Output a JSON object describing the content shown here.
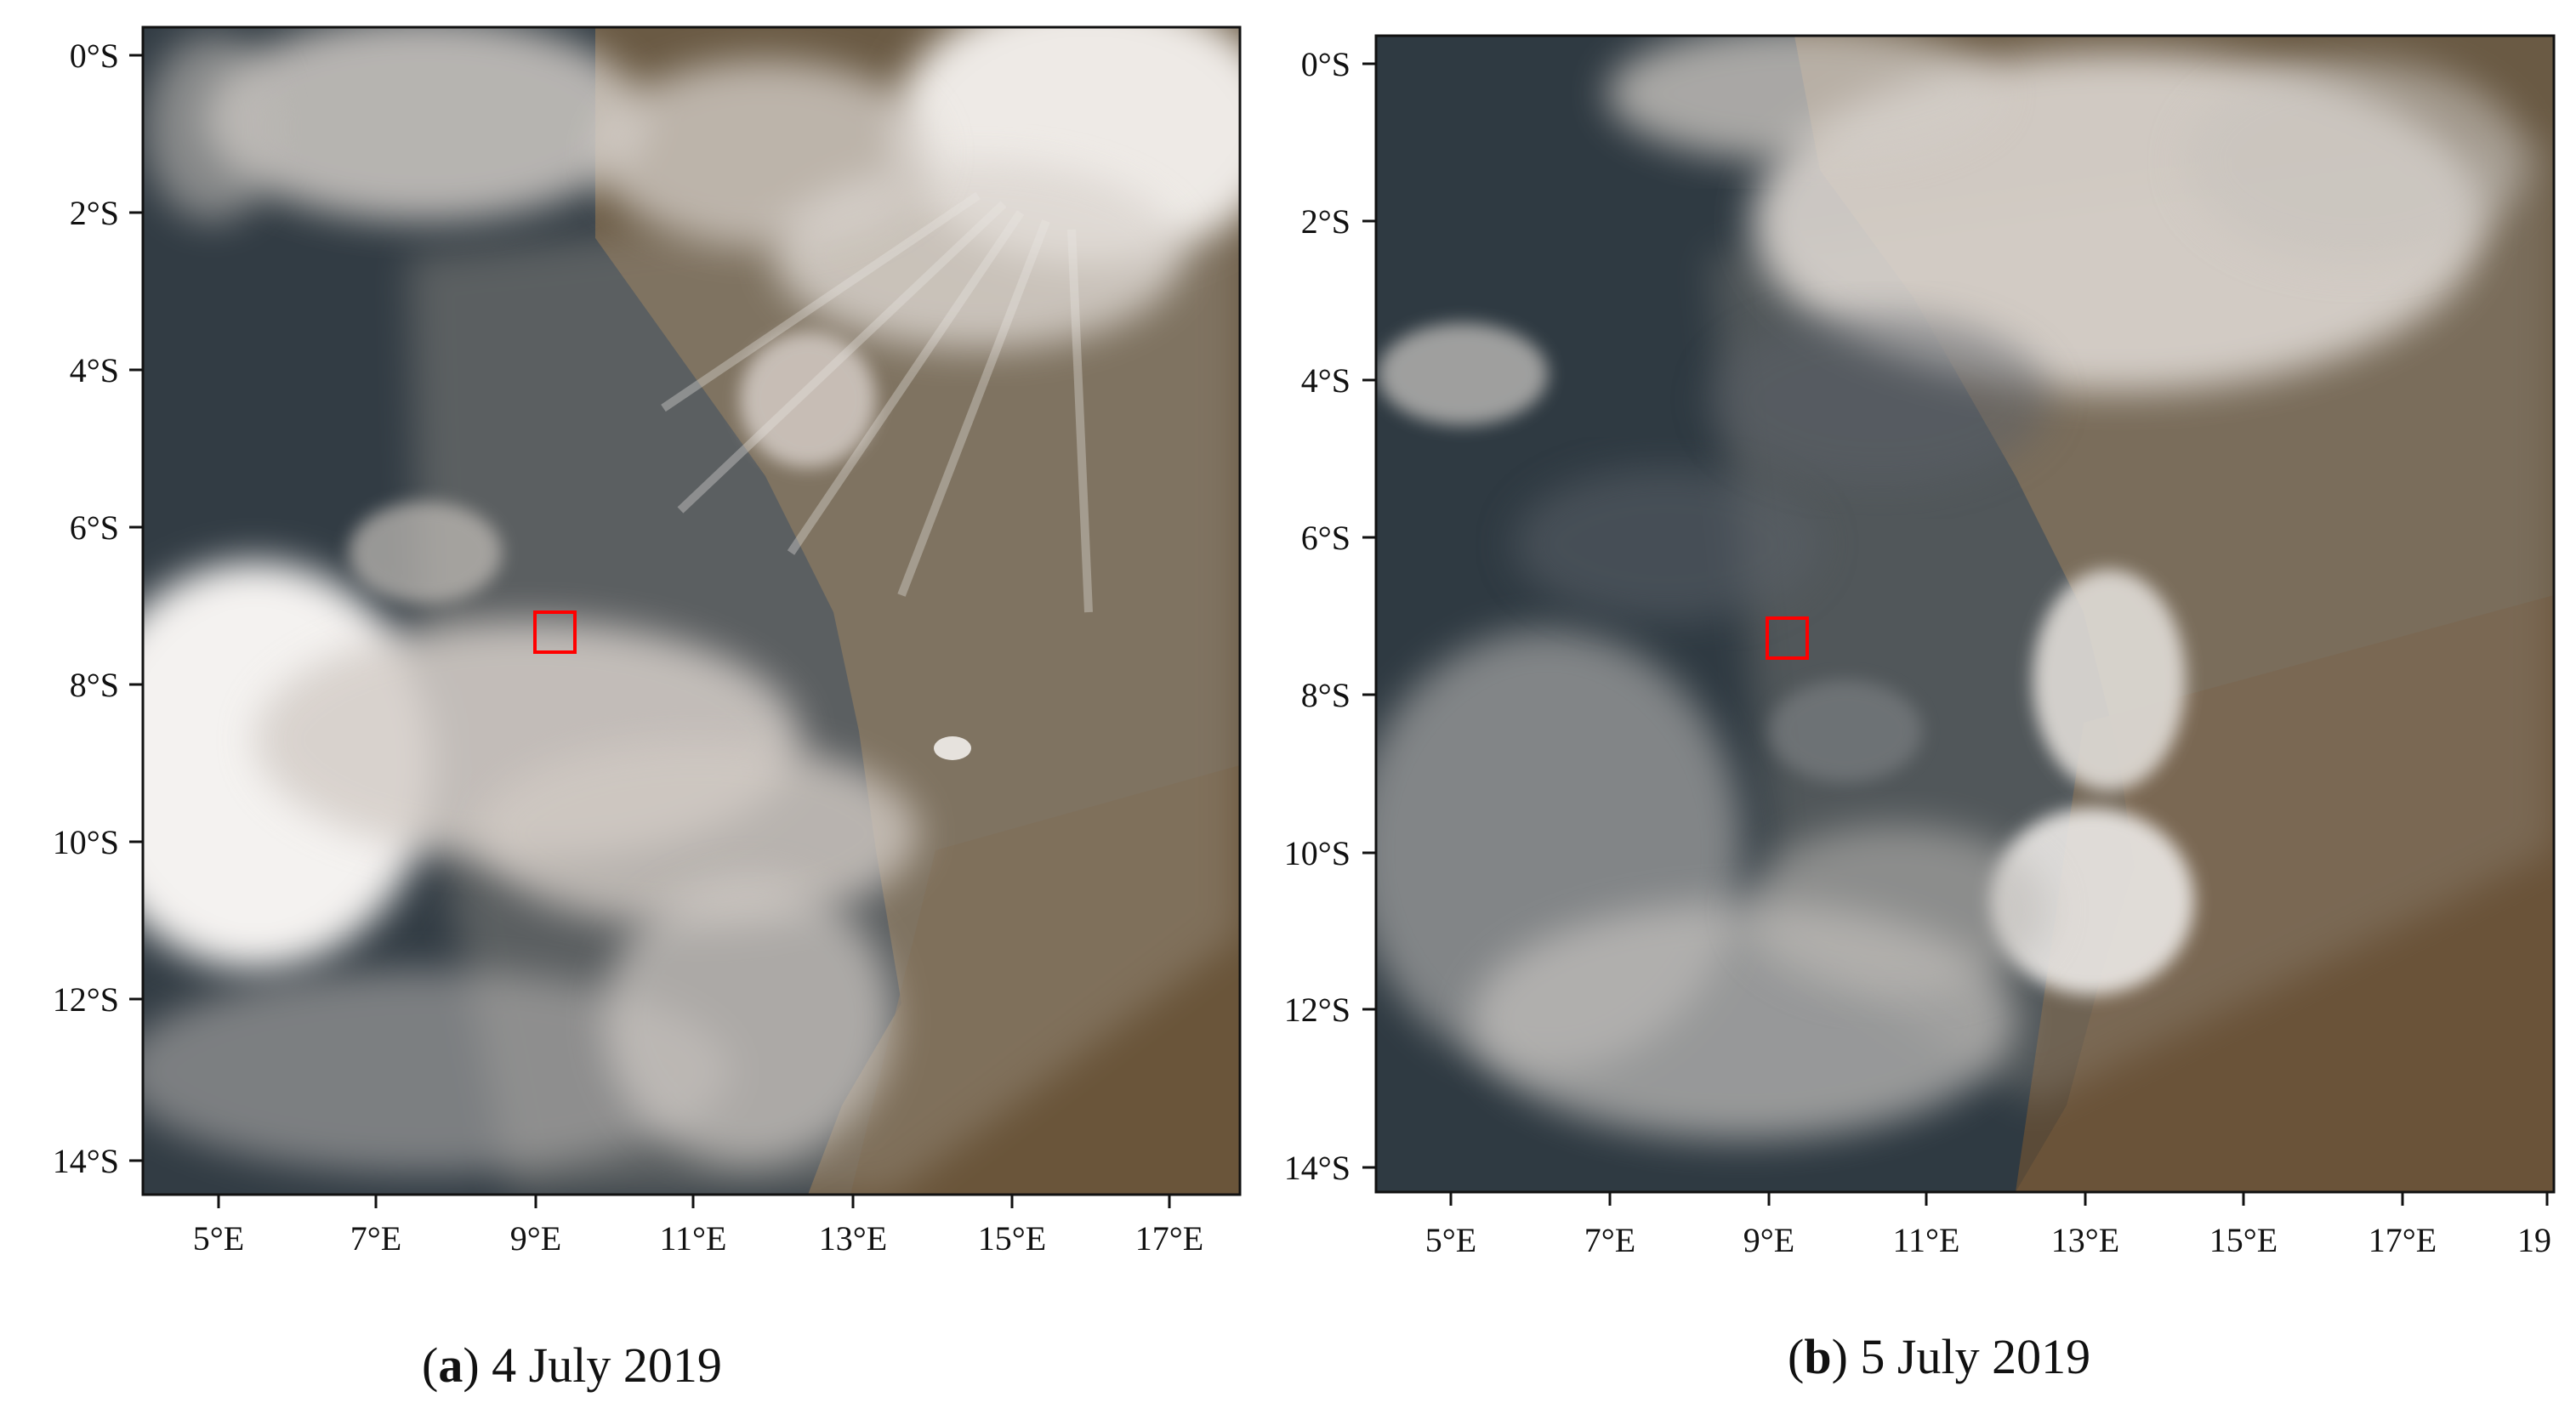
{
  "panels": [
    {
      "id": "a",
      "letter": "a",
      "date": "4 July 2019",
      "y_ticks": [
        "0°S",
        "2°S",
        "4°S",
        "6°S",
        "8°S",
        "10°S",
        "12°S",
        "14°S"
      ],
      "x_ticks": [
        "5°E",
        "7°E",
        "9°E",
        "11°E",
        "13°E",
        "15°E",
        "17°E"
      ],
      "marker": {
        "lon": 9.2,
        "lat": -7.3,
        "color": "#ff0000"
      }
    },
    {
      "id": "b",
      "letter": "b",
      "date": "5 July 2019",
      "y_ticks": [
        "0°S",
        "2°S",
        "4°S",
        "6°S",
        "8°S",
        "10°S",
        "12°S",
        "14°S"
      ],
      "x_ticks": [
        "5°E",
        "7°E",
        "9°E",
        "11°E",
        "13°E",
        "15°E",
        "17°E",
        "19"
      ],
      "marker": {
        "lon": 9.2,
        "lat": -7.4,
        "color": "#ff0000"
      }
    }
  ],
  "colors": {
    "ocean": "#323c44",
    "land": "#6a5a44",
    "cloud": "#dcd6d0",
    "haze": "#a8a298",
    "marker": "#ff0000"
  }
}
